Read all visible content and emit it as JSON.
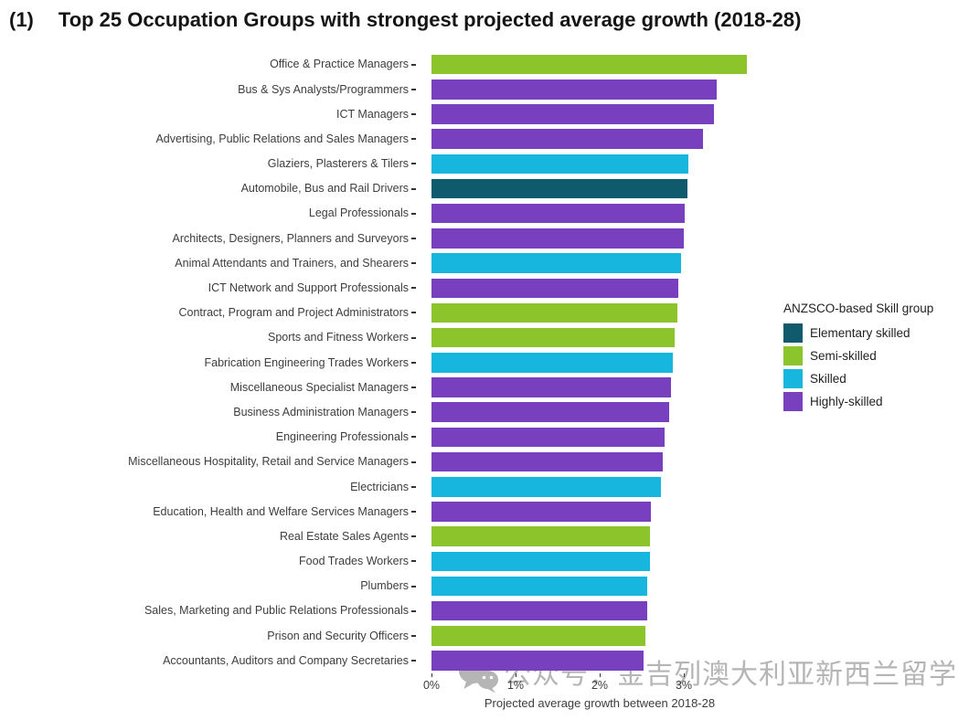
{
  "title": {
    "index": "(1)",
    "text": "Top 25 Occupation Groups with strongest projected average growth (2018-28)"
  },
  "chart_data": {
    "type": "bar",
    "orientation": "horizontal",
    "title": "Top 25 Occupation Groups with strongest projected average growth (2018-28)",
    "xlabel": "Projected average growth between 2018-28",
    "ylabel": "",
    "xlim": [
      0,
      4
    ],
    "x_ticks": [
      {
        "label": "0%",
        "value": 0
      },
      {
        "label": "1%",
        "value": 1
      },
      {
        "label": "2%",
        "value": 2
      },
      {
        "label": "3%",
        "value": 3
      }
    ],
    "grid": false,
    "legend": {
      "title": "ANZSCO-based Skill group",
      "position": "right",
      "items": [
        {
          "label": "Elementary skilled",
          "color": "#0F5B6D"
        },
        {
          "label": "Semi-skilled",
          "color": "#8CC42C"
        },
        {
          "label": "Skilled",
          "color": "#16B6DF"
        },
        {
          "label": "Highly-skilled",
          "color": "#7840BE"
        }
      ]
    },
    "bars": [
      {
        "label": "Office & Practice Managers",
        "value": 3.75,
        "group": "Semi-skilled"
      },
      {
        "label": "Bus & Sys Analysts/Programmers",
        "value": 3.39,
        "group": "Highly-skilled"
      },
      {
        "label": "ICT Managers",
        "value": 3.36,
        "group": "Highly-skilled"
      },
      {
        "label": "Advertising, Public Relations and Sales Managers",
        "value": 3.23,
        "group": "Highly-skilled"
      },
      {
        "label": "Glaziers, Plasterers & Tilers",
        "value": 3.05,
        "group": "Skilled"
      },
      {
        "label": "Automobile, Bus and Rail Drivers",
        "value": 3.04,
        "group": "Elementary skilled"
      },
      {
        "label": "Legal Professionals",
        "value": 3.01,
        "group": "Highly-skilled"
      },
      {
        "label": "Architects, Designers, Planners and Surveyors",
        "value": 3.0,
        "group": "Highly-skilled"
      },
      {
        "label": "Animal Attendants and Trainers, and Shearers",
        "value": 2.97,
        "group": "Skilled"
      },
      {
        "label": "ICT Network and Support Professionals",
        "value": 2.94,
        "group": "Highly-skilled"
      },
      {
        "label": "Contract, Program and Project Administrators",
        "value": 2.92,
        "group": "Semi-skilled"
      },
      {
        "label": "Sports and Fitness Workers",
        "value": 2.89,
        "group": "Semi-skilled"
      },
      {
        "label": "Fabrication Engineering Trades Workers",
        "value": 2.87,
        "group": "Skilled"
      },
      {
        "label": "Miscellaneous Specialist Managers",
        "value": 2.85,
        "group": "Highly-skilled"
      },
      {
        "label": "Business Administration Managers",
        "value": 2.83,
        "group": "Highly-skilled"
      },
      {
        "label": "Engineering Professionals",
        "value": 2.77,
        "group": "Highly-skilled"
      },
      {
        "label": "Miscellaneous Hospitality, Retail and Service Managers",
        "value": 2.75,
        "group": "Highly-skilled"
      },
      {
        "label": "Electricians",
        "value": 2.73,
        "group": "Skilled"
      },
      {
        "label": "Education, Health and Welfare Services Managers",
        "value": 2.61,
        "group": "Highly-skilled"
      },
      {
        "label": "Real Estate Sales Agents",
        "value": 2.6,
        "group": "Semi-skilled"
      },
      {
        "label": "Food Trades Workers",
        "value": 2.6,
        "group": "Skilled"
      },
      {
        "label": "Plumbers",
        "value": 2.57,
        "group": "Skilled"
      },
      {
        "label": "Sales, Marketing and Public Relations Professionals",
        "value": 2.57,
        "group": "Highly-skilled"
      },
      {
        "label": "Prison and Security Officers",
        "value": 2.54,
        "group": "Semi-skilled"
      },
      {
        "label": "Accountants, Auditors and Company Secretaries",
        "value": 2.52,
        "group": "Highly-skilled"
      }
    ]
  },
  "watermark": {
    "icon": "wechat-icon",
    "text": "公众号：金吉列澳大利亚新西兰留学"
  }
}
